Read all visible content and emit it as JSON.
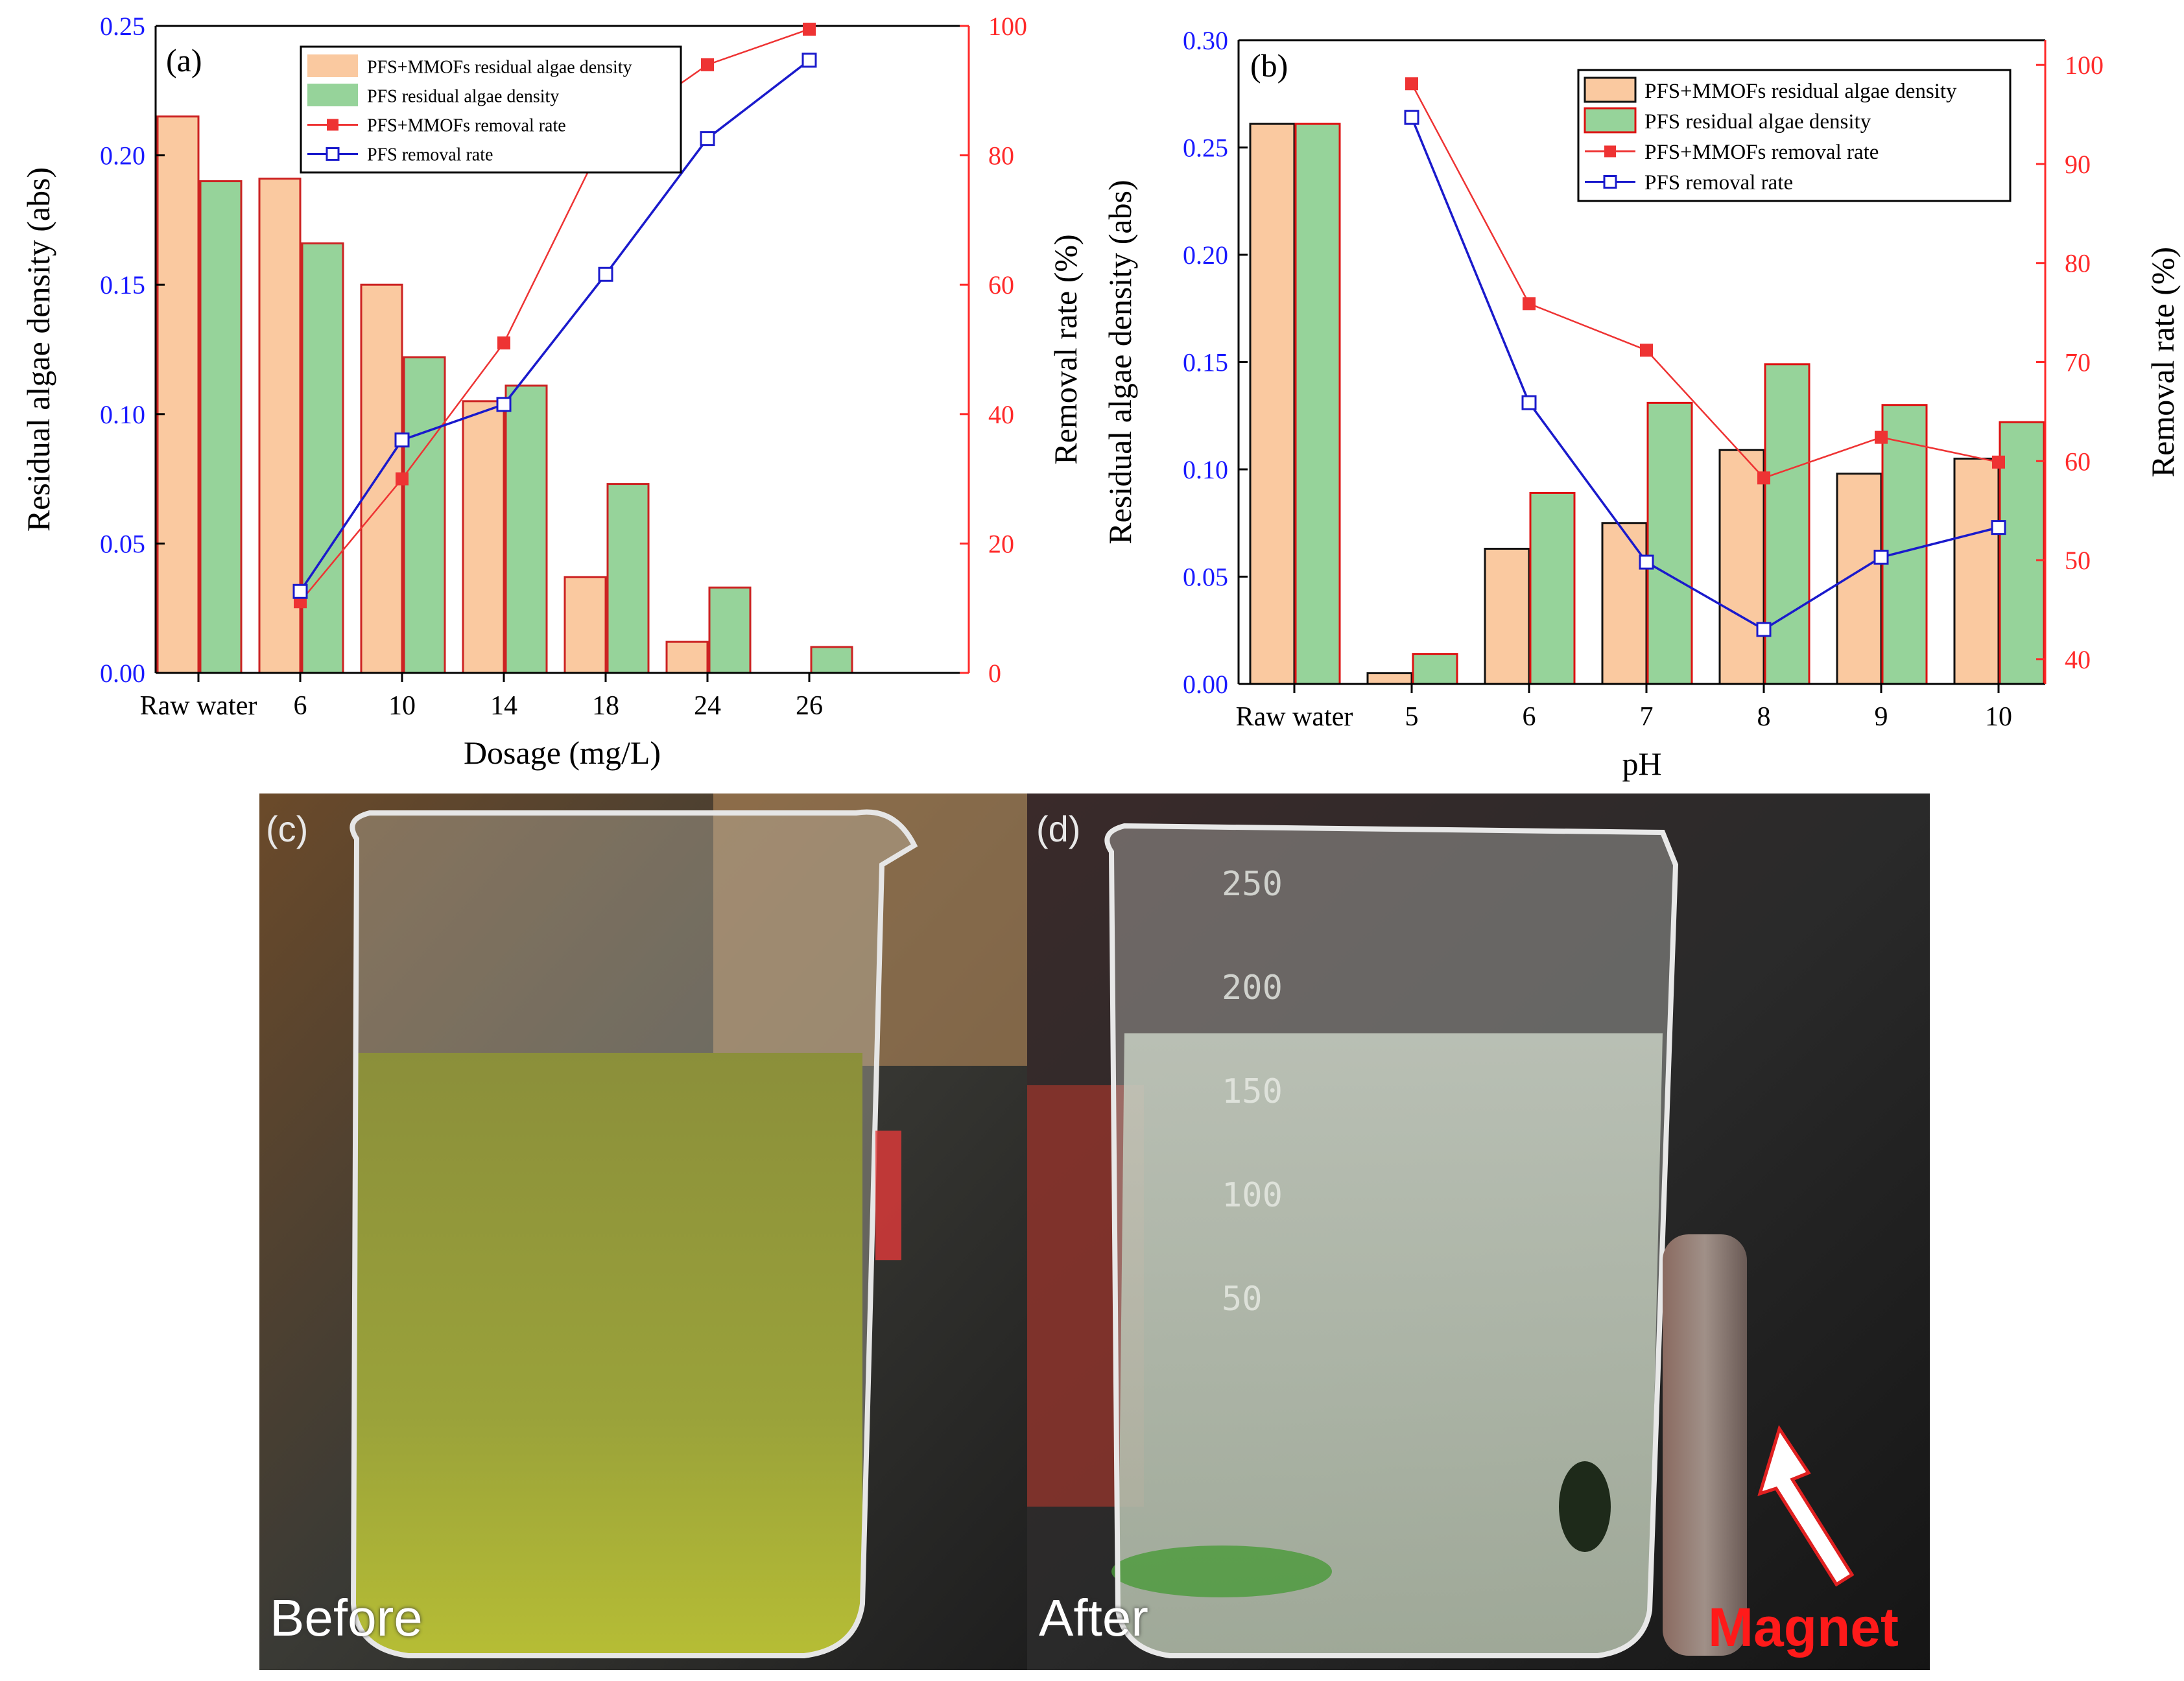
{
  "colors": {
    "blue_axis": "#1a1aff",
    "red_axis": "#ff2a2a",
    "bar_mmofs_fill": "#fac9a0",
    "bar_pfs_fill": "#96d39a",
    "mmofs_line": "#ee3333",
    "pfs_line": "#1a1acc"
  },
  "chart_data": [
    {
      "id": "a",
      "panel_label": "(a)",
      "type": "bar+line",
      "xlabel": "Dosage (mg/L)",
      "ylabel_left": "Residual algae density (abs)",
      "ylabel_right": "Removal rate (%)",
      "categories": [
        "Raw water",
        "6",
        "10",
        "14",
        "18",
        "24",
        "26"
      ],
      "ylim_left": [
        0,
        0.25
      ],
      "yticks_left": [
        "0.00",
        "0.05",
        "0.10",
        "0.15",
        "0.20",
        "0.25"
      ],
      "ylim_right": [
        0,
        100
      ],
      "yticks_right": [
        "0",
        "20",
        "40",
        "60",
        "80",
        "100"
      ],
      "series": [
        {
          "name": "PFS+MMOFs residual algae density",
          "kind": "bar",
          "axis": "left",
          "values": [
            0.215,
            0.191,
            0.15,
            0.105,
            0.037,
            0.012,
            0
          ]
        },
        {
          "name": "PFS residual algae density",
          "kind": "bar",
          "axis": "left",
          "values": [
            0.19,
            0.166,
            0.122,
            0.111,
            0.073,
            0.033,
            0.01
          ]
        },
        {
          "name": "PFS+MMOFs removal rate",
          "kind": "line",
          "axis": "right",
          "marker": "filled-square",
          "values": [
            null,
            11,
            30,
            51,
            83,
            94,
            99.5
          ]
        },
        {
          "name": "PFS removal rate",
          "kind": "line",
          "axis": "right",
          "marker": "open-square",
          "values": [
            null,
            12.6,
            36,
            41.5,
            61.6,
            82.6,
            94.7
          ]
        }
      ],
      "legend_position": "top-right"
    },
    {
      "id": "b",
      "panel_label": "(b)",
      "type": "bar+line",
      "xlabel": "pH",
      "ylabel_left": "Residual algae density (abs)",
      "ylabel_right": "Removal rate (%)",
      "categories": [
        "Raw water",
        "5",
        "6",
        "7",
        "8",
        "9",
        "10"
      ],
      "ylim_left": [
        0,
        0.3
      ],
      "yticks_left": [
        "0.00",
        "0.05",
        "0.10",
        "0.15",
        "0.20",
        "0.25",
        "0.30"
      ],
      "ylim_right": [
        37.5,
        102.5
      ],
      "yticks_right": [
        "40",
        "50",
        "60",
        "70",
        "80",
        "90",
        "100"
      ],
      "series": [
        {
          "name": "PFS+MMOFs residual algae density",
          "kind": "bar",
          "axis": "left",
          "values": [
            0.261,
            0.005,
            0.063,
            0.075,
            0.109,
            0.098,
            0.105
          ]
        },
        {
          "name": "PFS residual algae density",
          "kind": "bar",
          "axis": "left",
          "values": [
            0.261,
            0.014,
            0.089,
            0.131,
            0.149,
            0.13,
            0.122
          ]
        },
        {
          "name": "PFS+MMOFs removal rate",
          "kind": "line",
          "axis": "right",
          "marker": "filled-square",
          "values": [
            null,
            98.1,
            75.9,
            71.2,
            58.3,
            62.4,
            59.9
          ]
        },
        {
          "name": "PFS removal rate",
          "kind": "line",
          "axis": "right",
          "marker": "open-square",
          "values": [
            null,
            94.7,
            65.9,
            49.8,
            43.0,
            50.3,
            53.3
          ]
        }
      ],
      "legend_position": "top-right"
    }
  ],
  "photos": {
    "c": {
      "panel_label": "(c)",
      "caption": "Before"
    },
    "d": {
      "panel_label": "(d)",
      "caption": "After",
      "annotation": "Magnet",
      "scale_marks": [
        "250",
        "200",
        "150",
        "100",
        "50"
      ]
    }
  }
}
